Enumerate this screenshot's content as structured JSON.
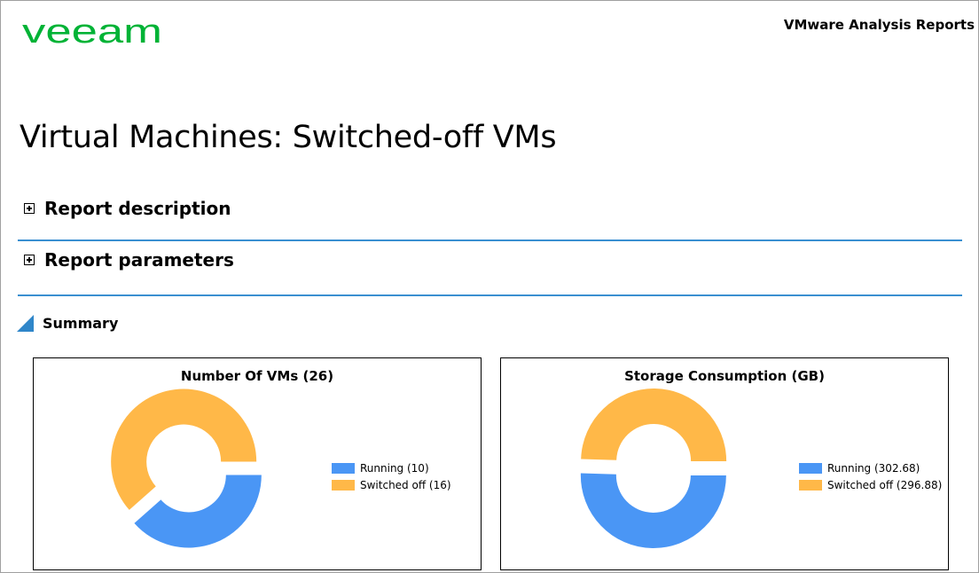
{
  "brand": {
    "logo_text": "VEEAM",
    "logo_color": "#00b336"
  },
  "header": {
    "product": "VMware Analysis Reports"
  },
  "page": {
    "title": "Virtual Machines: Switched-off VMs"
  },
  "sections": [
    {
      "label": "Report description",
      "icon": "expand-plus-icon"
    },
    {
      "label": "Report parameters",
      "icon": "expand-plus-icon"
    }
  ],
  "summary": {
    "label": "Summary",
    "icon": "collapse-triangle-icon"
  },
  "colors": {
    "running": "#4a96f5",
    "switched_off": "#ffb848",
    "divider": "#3a8fd1"
  },
  "chart_data": [
    {
      "type": "pie",
      "title": "Number Of VMs (26)",
      "categories": [
        "Running",
        "Switched off"
      ],
      "values": [
        10,
        16
      ],
      "legend": [
        "Running (10)",
        "Switched off (16)"
      ],
      "legend_position": "right"
    },
    {
      "type": "pie",
      "title": "Storage Consumption (GB)",
      "categories": [
        "Running",
        "Switched off"
      ],
      "values": [
        302.68,
        296.88
      ],
      "legend": [
        "Running (302.68)",
        "Switched off (296.88)"
      ],
      "legend_position": "right"
    }
  ]
}
